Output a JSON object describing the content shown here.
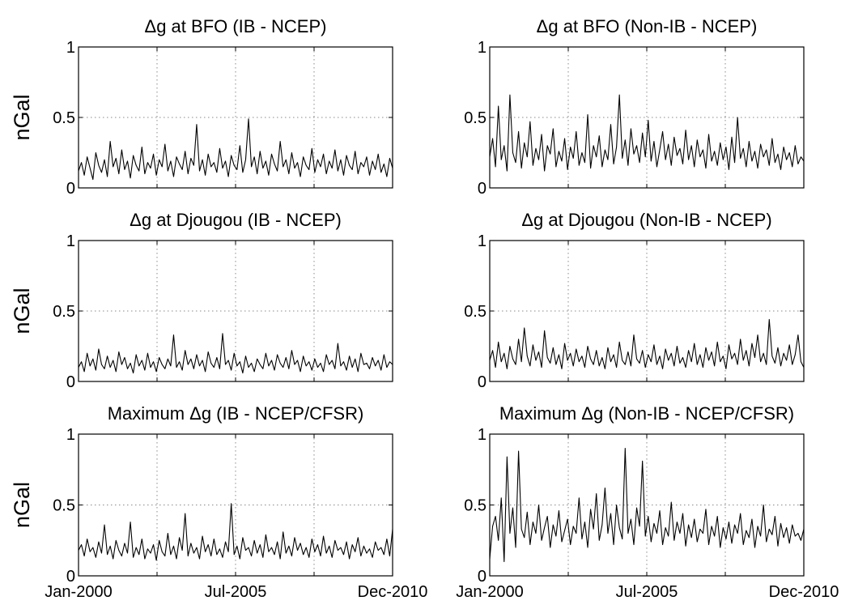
{
  "chart_data": [
    {
      "type": "line",
      "title": "Δg at BFO (IB - NCEP)",
      "ylabel": "nGal",
      "xlabel": "",
      "ylim": [
        0,
        1
      ],
      "yticks": [
        0,
        0.5,
        1
      ],
      "ytick_labels": [
        "0",
        "0.5",
        "1"
      ],
      "xlim": [
        "2000-01",
        "2010-12"
      ],
      "xtick_labels": [
        "Jan-2000",
        "Jul-2005",
        "Dec-2010"
      ],
      "grid": true,
      "series": [
        {
          "x_start": "2000-01",
          "x_end": "2010-12",
          "values": [
            0.12,
            0.18,
            0.09,
            0.22,
            0.14,
            0.06,
            0.25,
            0.16,
            0.11,
            0.2,
            0.08,
            0.33,
            0.15,
            0.21,
            0.1,
            0.27,
            0.13,
            0.19,
            0.07,
            0.23,
            0.16,
            0.12,
            0.29,
            0.1,
            0.18,
            0.14,
            0.24,
            0.09,
            0.2,
            0.15,
            0.31,
            0.12,
            0.19,
            0.08,
            0.22,
            0.17,
            0.13,
            0.26,
            0.1,
            0.21,
            0.16,
            0.45,
            0.12,
            0.2,
            0.09,
            0.24,
            0.15,
            0.18,
            0.11,
            0.28,
            0.14,
            0.19,
            0.08,
            0.23,
            0.16,
            0.13,
            0.3,
            0.11,
            0.2,
            0.49,
            0.15,
            0.22,
            0.1,
            0.26,
            0.14,
            0.19,
            0.09,
            0.24,
            0.17,
            0.12,
            0.33,
            0.15,
            0.2,
            0.1,
            0.25,
            0.14,
            0.18,
            0.08,
            0.22,
            0.16,
            0.13,
            0.28,
            0.11,
            0.2,
            0.15,
            0.24,
            0.1,
            0.19,
            0.14,
            0.27,
            0.12,
            0.2,
            0.09,
            0.23,
            0.16,
            0.13,
            0.26,
            0.1,
            0.18,
            0.15,
            0.22,
            0.09,
            0.19,
            0.13,
            0.24,
            0.11,
            0.17,
            0.08,
            0.21,
            0.14
          ]
        }
      ]
    },
    {
      "type": "line",
      "title": "Δg at BFO (Non-IB - NCEP)",
      "ylabel": "",
      "xlabel": "",
      "ylim": [
        0,
        1
      ],
      "yticks": [
        0,
        0.5,
        1
      ],
      "ytick_labels": [
        "0",
        "0.5",
        "1"
      ],
      "xlim": [
        "2000-01",
        "2010-12"
      ],
      "xtick_labels": [
        "Jan-2000",
        "Jul-2005",
        "Dec-2010"
      ],
      "grid": true,
      "series": [
        {
          "x_start": "2000-01",
          "x_end": "2010-12",
          "values": [
            0.22,
            0.35,
            0.15,
            0.58,
            0.2,
            0.3,
            0.12,
            0.66,
            0.25,
            0.18,
            0.4,
            0.14,
            0.32,
            0.22,
            0.47,
            0.16,
            0.28,
            0.2,
            0.38,
            0.12,
            0.3,
            0.24,
            0.42,
            0.15,
            0.26,
            0.19,
            0.35,
            0.13,
            0.29,
            0.21,
            0.4,
            0.16,
            0.25,
            0.18,
            0.52,
            0.14,
            0.3,
            0.22,
            0.37,
            0.15,
            0.27,
            0.2,
            0.45,
            0.17,
            0.29,
            0.66,
            0.21,
            0.34,
            0.16,
            0.42,
            0.24,
            0.3,
            0.18,
            0.39,
            0.22,
            0.48,
            0.19,
            0.33,
            0.15,
            0.27,
            0.4,
            0.2,
            0.31,
            0.16,
            0.36,
            0.23,
            0.28,
            0.17,
            0.41,
            0.2,
            0.3,
            0.15,
            0.34,
            0.22,
            0.27,
            0.14,
            0.38,
            0.19,
            0.26,
            0.16,
            0.32,
            0.2,
            0.29,
            0.13,
            0.36,
            0.18,
            0.5,
            0.21,
            0.28,
            0.15,
            0.33,
            0.19,
            0.26,
            0.14,
            0.31,
            0.22,
            0.27,
            0.16,
            0.35,
            0.18,
            0.24,
            0.13,
            0.29,
            0.2,
            0.25,
            0.15,
            0.3,
            0.17,
            0.22,
            0.19
          ]
        }
      ]
    },
    {
      "type": "line",
      "title": "Δg at Djougou (IB - NCEP)",
      "ylabel": "nGal",
      "xlabel": "",
      "ylim": [
        0,
        1
      ],
      "yticks": [
        0,
        0.5,
        1
      ],
      "ytick_labels": [
        "0",
        "0.5",
        "1"
      ],
      "xlim": [
        "2000-01",
        "2010-12"
      ],
      "xtick_labels": [
        "Jan-2000",
        "Jul-2005",
        "Dec-2010"
      ],
      "grid": true,
      "series": [
        {
          "x_start": "2000-01",
          "x_end": "2010-12",
          "values": [
            0.1,
            0.14,
            0.07,
            0.2,
            0.11,
            0.16,
            0.08,
            0.23,
            0.12,
            0.09,
            0.18,
            0.1,
            0.15,
            0.07,
            0.21,
            0.12,
            0.17,
            0.09,
            0.13,
            0.06,
            0.19,
            0.11,
            0.15,
            0.08,
            0.2,
            0.1,
            0.14,
            0.07,
            0.17,
            0.12,
            0.09,
            0.16,
            0.11,
            0.33,
            0.1,
            0.14,
            0.08,
            0.22,
            0.12,
            0.16,
            0.09,
            0.19,
            0.11,
            0.15,
            0.07,
            0.21,
            0.13,
            0.1,
            0.17,
            0.09,
            0.34,
            0.12,
            0.15,
            0.08,
            0.2,
            0.11,
            0.14,
            0.06,
            0.18,
            0.1,
            0.13,
            0.07,
            0.16,
            0.12,
            0.09,
            0.2,
            0.11,
            0.15,
            0.08,
            0.19,
            0.13,
            0.1,
            0.17,
            0.09,
            0.22,
            0.12,
            0.15,
            0.07,
            0.18,
            0.11,
            0.14,
            0.08,
            0.16,
            0.1,
            0.13,
            0.07,
            0.19,
            0.12,
            0.15,
            0.09,
            0.27,
            0.11,
            0.14,
            0.08,
            0.18,
            0.1,
            0.16,
            0.07,
            0.2,
            0.12,
            0.13,
            0.09,
            0.17,
            0.11,
            0.15,
            0.08,
            0.19,
            0.1,
            0.14,
            0.12
          ]
        }
      ]
    },
    {
      "type": "line",
      "title": "Δg at Djougou (Non-IB - NCEP)",
      "ylabel": "",
      "xlabel": "",
      "ylim": [
        0,
        1
      ],
      "yticks": [
        0,
        0.5,
        1
      ],
      "ytick_labels": [
        "0",
        "0.5",
        "1"
      ],
      "xlim": [
        "2000-01",
        "2010-12"
      ],
      "xtick_labels": [
        "Jan-2000",
        "Jul-2005",
        "Dec-2010"
      ],
      "grid": true,
      "series": [
        {
          "x_start": "2000-01",
          "x_end": "2010-12",
          "values": [
            0.15,
            0.22,
            0.1,
            0.28,
            0.14,
            0.2,
            0.09,
            0.25,
            0.16,
            0.12,
            0.3,
            0.14,
            0.38,
            0.18,
            0.11,
            0.26,
            0.15,
            0.21,
            0.1,
            0.36,
            0.17,
            0.13,
            0.24,
            0.12,
            0.19,
            0.09,
            0.27,
            0.15,
            0.2,
            0.11,
            0.23,
            0.14,
            0.18,
            0.1,
            0.25,
            0.16,
            0.12,
            0.22,
            0.11,
            0.17,
            0.09,
            0.24,
            0.14,
            0.19,
            0.1,
            0.28,
            0.15,
            0.12,
            0.21,
            0.11,
            0.33,
            0.16,
            0.13,
            0.22,
            0.1,
            0.19,
            0.14,
            0.26,
            0.12,
            0.18,
            0.09,
            0.23,
            0.15,
            0.2,
            0.11,
            0.25,
            0.13,
            0.17,
            0.1,
            0.22,
            0.14,
            0.27,
            0.12,
            0.19,
            0.1,
            0.24,
            0.15,
            0.21,
            0.11,
            0.28,
            0.14,
            0.18,
            0.09,
            0.26,
            0.16,
            0.2,
            0.12,
            0.3,
            0.15,
            0.22,
            0.11,
            0.27,
            0.17,
            0.33,
            0.14,
            0.2,
            0.12,
            0.44,
            0.18,
            0.13,
            0.24,
            0.11,
            0.2,
            0.15,
            0.26,
            0.12,
            0.19,
            0.33,
            0.14,
            0.1
          ]
        }
      ]
    },
    {
      "type": "line",
      "title": "Maximum Δg (IB - NCEP/CFSR)",
      "ylabel": "nGal",
      "xlabel": "",
      "ylim": [
        0,
        1
      ],
      "yticks": [
        0,
        0.5,
        1
      ],
      "ytick_labels": [
        "0",
        "0.5",
        "1"
      ],
      "xlim": [
        "2000-01",
        "2010-12"
      ],
      "xtick_labels": [
        "Jan-2000",
        "Jul-2005",
        "Dec-2010"
      ],
      "grid": true,
      "series": [
        {
          "x_start": "2000-01",
          "x_end": "2010-12",
          "values": [
            0.18,
            0.22,
            0.14,
            0.26,
            0.17,
            0.2,
            0.13,
            0.24,
            0.16,
            0.36,
            0.15,
            0.21,
            0.12,
            0.25,
            0.18,
            0.14,
            0.23,
            0.16,
            0.38,
            0.13,
            0.2,
            0.15,
            0.26,
            0.12,
            0.19,
            0.16,
            0.22,
            0.11,
            0.25,
            0.17,
            0.14,
            0.3,
            0.15,
            0.21,
            0.12,
            0.27,
            0.18,
            0.44,
            0.14,
            0.23,
            0.16,
            0.2,
            0.12,
            0.28,
            0.17,
            0.22,
            0.14,
            0.26,
            0.15,
            0.19,
            0.13,
            0.24,
            0.17,
            0.51,
            0.15,
            0.21,
            0.12,
            0.27,
            0.18,
            0.2,
            0.14,
            0.25,
            0.16,
            0.22,
            0.13,
            0.29,
            0.17,
            0.2,
            0.15,
            0.24,
            0.12,
            0.31,
            0.16,
            0.21,
            0.14,
            0.27,
            0.18,
            0.23,
            0.15,
            0.2,
            0.13,
            0.26,
            0.17,
            0.22,
            0.14,
            0.28,
            0.16,
            0.21,
            0.13,
            0.25,
            0.18,
            0.2,
            0.15,
            0.24,
            0.12,
            0.22,
            0.17,
            0.27,
            0.14,
            0.21,
            0.16,
            0.19,
            0.13,
            0.24,
            0.18,
            0.2,
            0.15,
            0.26,
            0.14,
            0.33
          ]
        }
      ]
    },
    {
      "type": "line",
      "title": "Maximum Δg (Non-IB - NCEP/CFSR)",
      "ylabel": "",
      "xlabel": "",
      "ylim": [
        0,
        1
      ],
      "yticks": [
        0,
        0.5,
        1
      ],
      "ytick_labels": [
        "0",
        "0.5",
        "1"
      ],
      "xlim": [
        "2000-01",
        "2010-12"
      ],
      "xtick_labels": [
        "Jan-2000",
        "Jul-2005",
        "Dec-2010"
      ],
      "grid": true,
      "series": [
        {
          "x_start": "2000-01",
          "x_end": "2010-12",
          "values": [
            0.12,
            0.35,
            0.42,
            0.25,
            0.55,
            0.1,
            0.84,
            0.3,
            0.48,
            0.2,
            0.88,
            0.33,
            0.27,
            0.45,
            0.22,
            0.38,
            0.3,
            0.5,
            0.25,
            0.34,
            0.42,
            0.2,
            0.36,
            0.28,
            0.46,
            0.24,
            0.32,
            0.4,
            0.22,
            0.35,
            0.3,
            0.55,
            0.26,
            0.38,
            0.2,
            0.47,
            0.33,
            0.58,
            0.25,
            0.36,
            0.62,
            0.3,
            0.44,
            0.22,
            0.5,
            0.34,
            0.26,
            0.9,
            0.3,
            0.4,
            0.22,
            0.48,
            0.35,
            0.81,
            0.28,
            0.42,
            0.24,
            0.37,
            0.3,
            0.46,
            0.22,
            0.34,
            0.28,
            0.52,
            0.25,
            0.38,
            0.3,
            0.44,
            0.21,
            0.36,
            0.27,
            0.4,
            0.24,
            0.33,
            0.3,
            0.47,
            0.22,
            0.35,
            0.28,
            0.42,
            0.2,
            0.34,
            0.26,
            0.38,
            0.23,
            0.36,
            0.3,
            0.44,
            0.22,
            0.32,
            0.27,
            0.4,
            0.2,
            0.35,
            0.28,
            0.5,
            0.24,
            0.33,
            0.29,
            0.42,
            0.21,
            0.37,
            0.27,
            0.34,
            0.23,
            0.36,
            0.28,
            0.3,
            0.25,
            0.33
          ]
        }
      ]
    }
  ]
}
